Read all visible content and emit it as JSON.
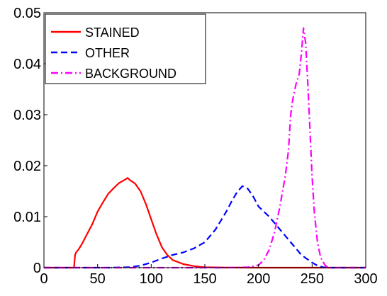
{
  "chart_data": {
    "type": "line",
    "title": "",
    "xlabel": "",
    "ylabel": "",
    "xlim": [
      0,
      300
    ],
    "ylim": [
      0,
      0.05
    ],
    "x_ticks": [
      0,
      50,
      100,
      150,
      200,
      250,
      300
    ],
    "x_tick_labels": [
      "0",
      "50",
      "100",
      "150",
      "200",
      "250",
      "300"
    ],
    "y_ticks": [
      0,
      0.01,
      0.02,
      0.03,
      0.04,
      0.05
    ],
    "y_tick_labels": [
      "0",
      "0.01",
      "0.02",
      "0.03",
      "0.04",
      "0.05"
    ],
    "grid": false,
    "legend_position": "top-left",
    "series": [
      {
        "name": "STAINED",
        "color": "#ff0000",
        "style": "solid",
        "x": [
          0,
          28,
          29,
          30,
          32,
          35,
          40,
          45,
          50,
          55,
          60,
          65,
          70,
          75,
          78,
          80,
          85,
          90,
          95,
          100,
          105,
          110,
          115,
          120,
          130,
          140,
          150,
          160,
          170,
          180,
          200,
          300
        ],
        "y": [
          0,
          0,
          0.0025,
          0.003,
          0.0035,
          0.0045,
          0.0065,
          0.0085,
          0.011,
          0.0128,
          0.0145,
          0.0156,
          0.0166,
          0.0172,
          0.0176,
          0.0172,
          0.0165,
          0.015,
          0.0125,
          0.0095,
          0.0065,
          0.004,
          0.0025,
          0.0015,
          0.0007,
          0.0003,
          0.0001,
          5e-05,
          2e-05,
          1e-05,
          0,
          0
        ]
      },
      {
        "name": "OTHER",
        "color": "#0000ff",
        "style": "dashed",
        "x": [
          0,
          60,
          80,
          90,
          100,
          110,
          120,
          130,
          140,
          150,
          160,
          170,
          175,
          180,
          185,
          190,
          195,
          200,
          210,
          220,
          230,
          240,
          250,
          255,
          260,
          265,
          300
        ],
        "y": [
          0,
          0,
          0.0001,
          0.0004,
          0.001,
          0.0018,
          0.0025,
          0.003,
          0.0038,
          0.005,
          0.0075,
          0.011,
          0.013,
          0.0148,
          0.016,
          0.0155,
          0.014,
          0.012,
          0.01,
          0.0075,
          0.005,
          0.0025,
          0.001,
          0.0004,
          0.0001,
          0,
          0
        ]
      },
      {
        "name": "BACKGROUND",
        "color": "#ff00ff",
        "style": "dash-dot",
        "x": [
          0,
          170,
          190,
          200,
          205,
          210,
          215,
          220,
          225,
          228,
          230,
          232,
          235,
          238,
          240,
          242,
          244,
          246,
          248,
          250,
          252,
          255,
          258,
          262,
          265,
          300
        ],
        "y": [
          0,
          0,
          0.0001,
          0.0005,
          0.0015,
          0.0035,
          0.007,
          0.012,
          0.018,
          0.023,
          0.03,
          0.033,
          0.036,
          0.038,
          0.042,
          0.047,
          0.044,
          0.036,
          0.027,
          0.018,
          0.011,
          0.005,
          0.002,
          0.0005,
          0,
          0
        ]
      }
    ]
  }
}
